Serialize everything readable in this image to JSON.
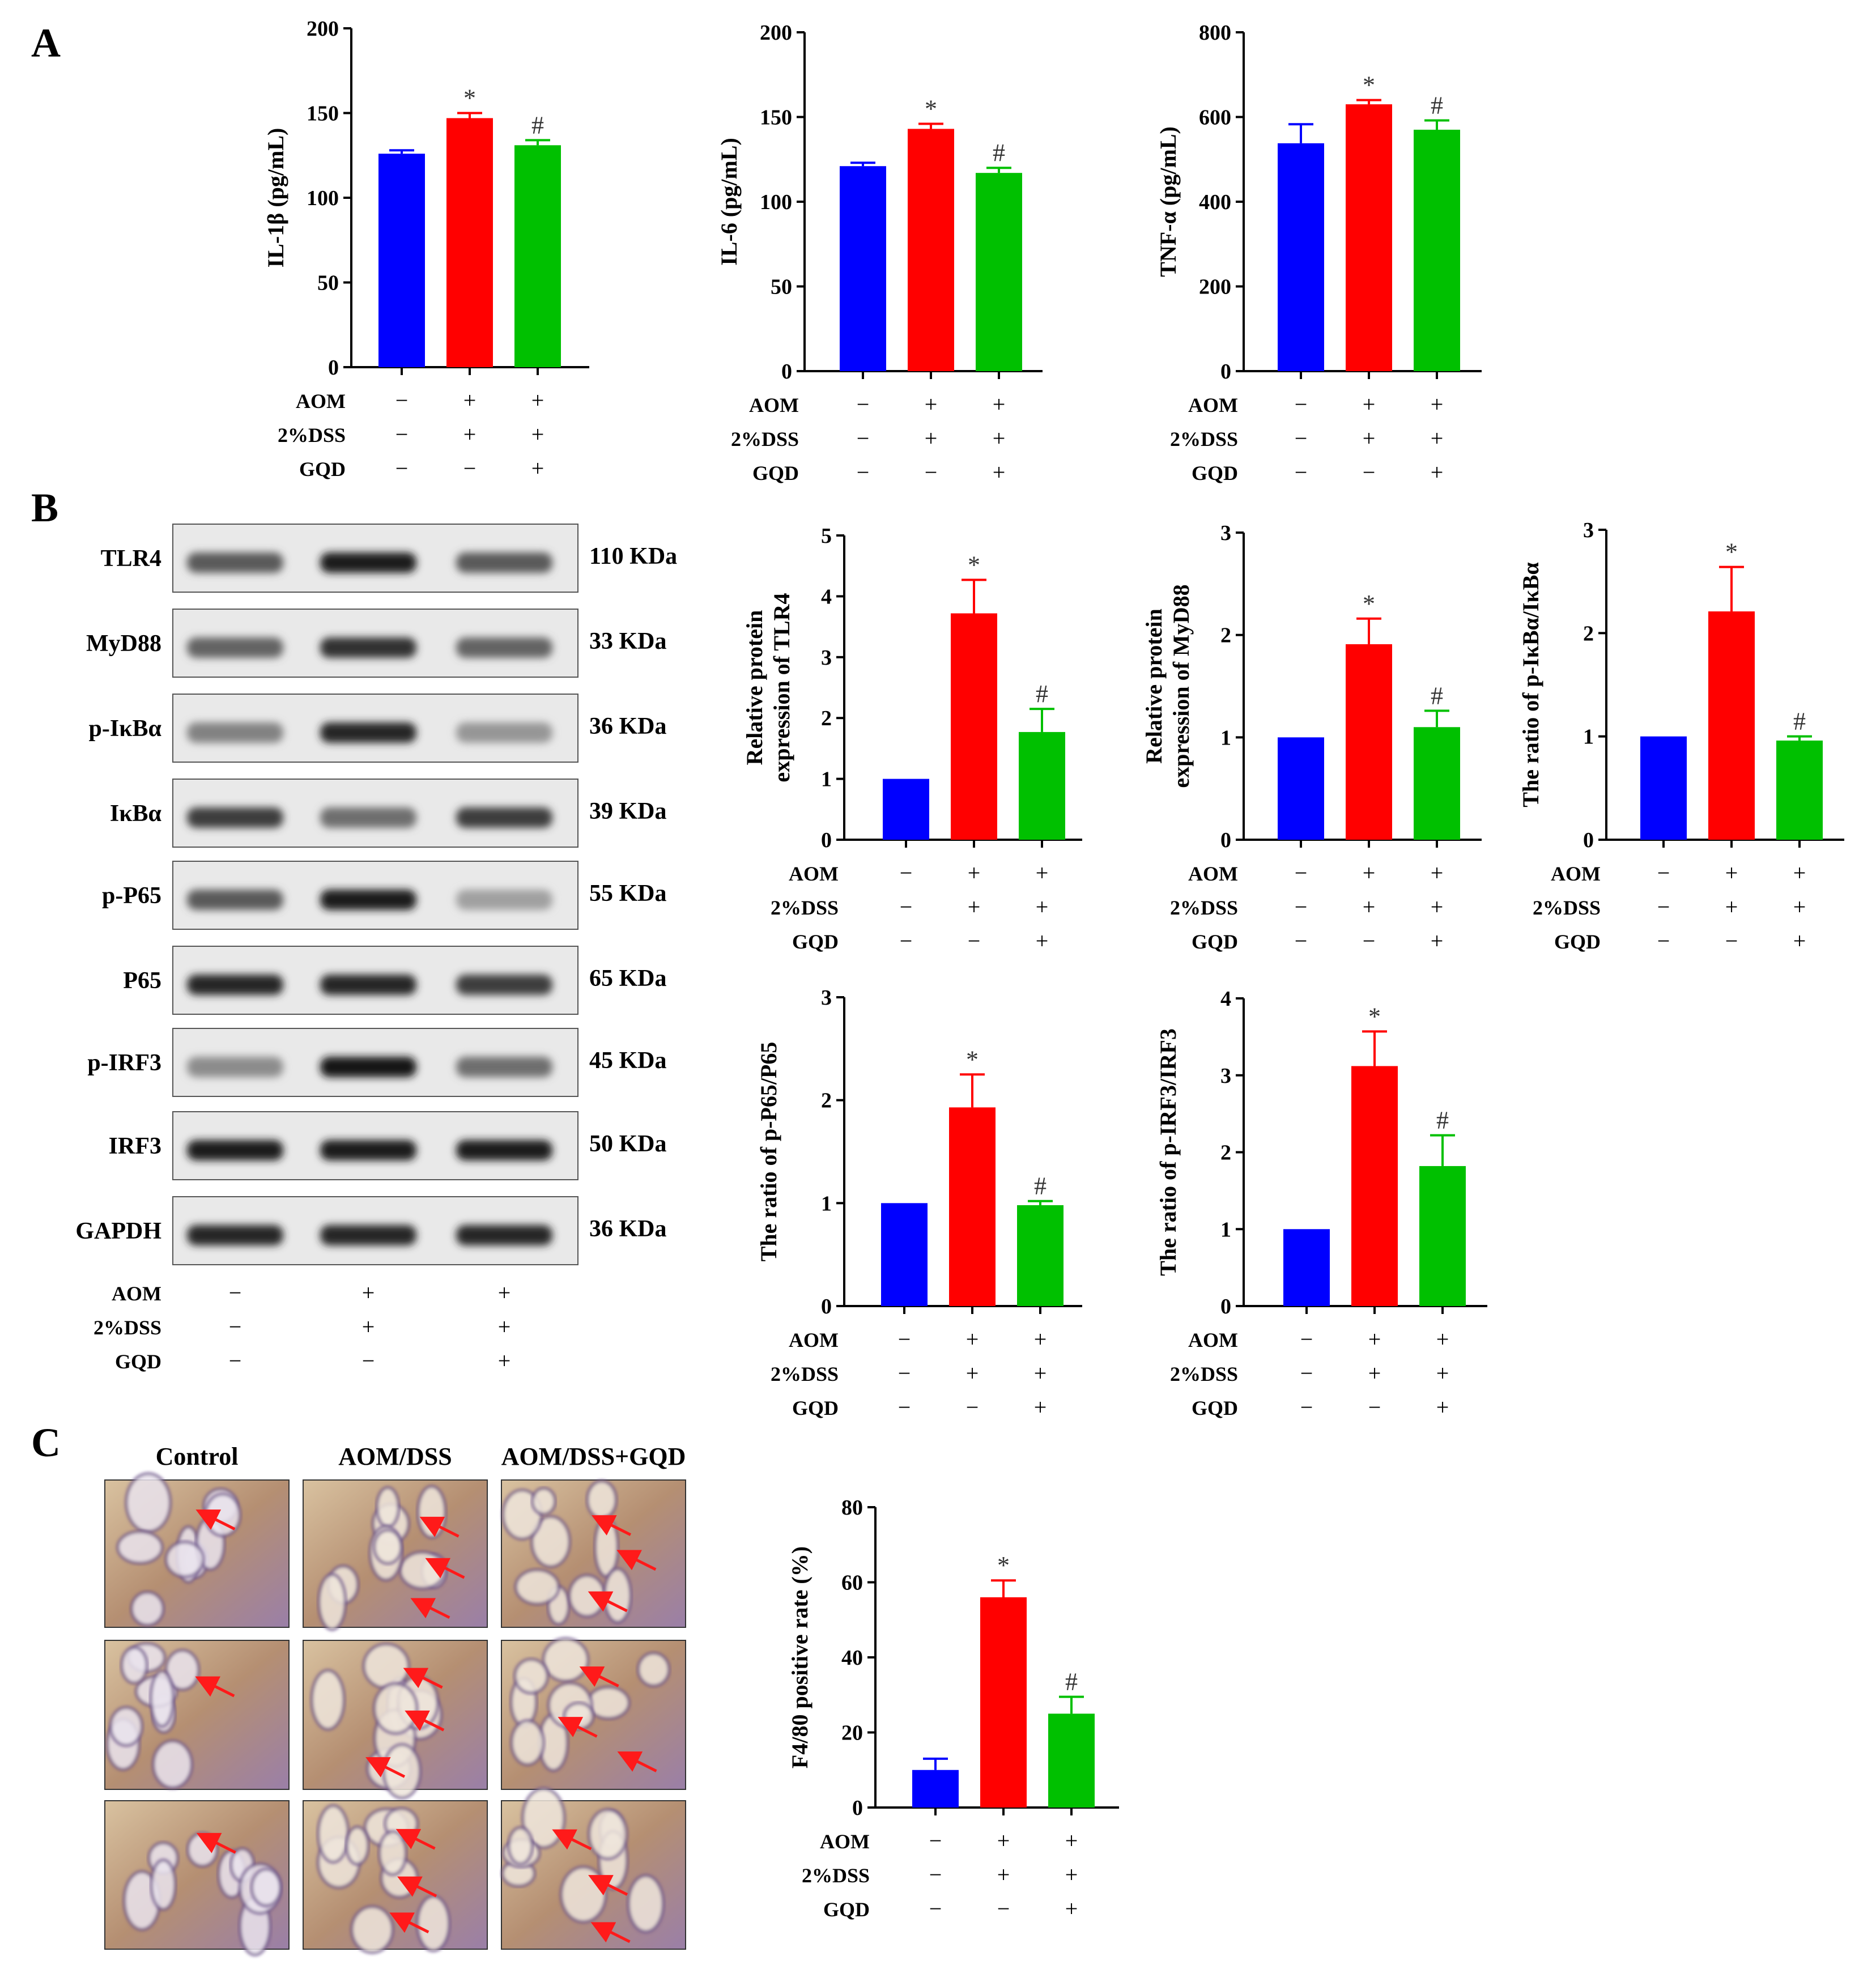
{
  "panel_labels": [
    "A",
    "B",
    "C"
  ],
  "condition_labels": [
    "AOM",
    "2%DSS",
    "GQD"
  ],
  "condition_marks": [
    [
      "−",
      "+",
      "+"
    ],
    [
      "−",
      "+",
      "+"
    ],
    [
      "−",
      "−",
      "+"
    ]
  ],
  "colors": {
    "group1": "#0000ff",
    "group2": "#ff0000",
    "group3": "#00c000"
  },
  "blot": {
    "proteins": [
      {
        "name": "TLR4",
        "kda": "110 KDa",
        "intensity": [
          0.55,
          0.85,
          0.55
        ]
      },
      {
        "name": "MyD88",
        "kda": "33 KDa",
        "intensity": [
          0.5,
          0.75,
          0.5
        ]
      },
      {
        "name": "p-IκBα",
        "kda": "36 KDa",
        "intensity": [
          0.35,
          0.8,
          0.25
        ]
      },
      {
        "name": "IκBα",
        "kda": "39 KDa",
        "intensity": [
          0.7,
          0.45,
          0.7
        ]
      },
      {
        "name": "p-P65",
        "kda": "55 KDa",
        "intensity": [
          0.55,
          0.85,
          0.2
        ]
      },
      {
        "name": "P65",
        "kda": "65 KDa",
        "intensity": [
          0.8,
          0.8,
          0.7
        ]
      },
      {
        "name": "p-IRF3",
        "kda": "45 KDa",
        "intensity": [
          0.3,
          0.9,
          0.45
        ]
      },
      {
        "name": "IRF3",
        "kda": "50 KDa",
        "intensity": [
          0.85,
          0.85,
          0.85
        ]
      },
      {
        "name": "GAPDH",
        "kda": "36 KDa",
        "intensity": [
          0.8,
          0.8,
          0.8
        ]
      }
    ]
  },
  "ihc": {
    "columns": [
      "Control",
      "AOM/DSS",
      "AOM/DSS+GQD"
    ]
  },
  "chart_data": [
    {
      "type": "bar",
      "ylabel": "IL-1β (pg/mL)",
      "ylim": [
        0,
        200
      ],
      "yticks": [
        "0",
        "50",
        "100",
        "150",
        "200"
      ],
      "values": [
        126,
        147,
        131
      ],
      "errors": [
        2,
        3,
        3
      ],
      "annotations": [
        "",
        "*",
        "#"
      ]
    },
    {
      "type": "bar",
      "ylabel": "IL-6 (pg/mL)",
      "ylim": [
        0,
        200
      ],
      "yticks": [
        "0",
        "50",
        "100",
        "150",
        "200"
      ],
      "values": [
        121,
        143,
        117
      ],
      "errors": [
        2,
        3,
        3
      ],
      "annotations": [
        "",
        "*",
        "#"
      ]
    },
    {
      "type": "bar",
      "ylabel": "TNF-α (pg/mL)",
      "ylim": [
        0,
        800
      ],
      "yticks": [
        "0",
        "200",
        "400",
        "600",
        "800"
      ],
      "values": [
        538,
        630,
        570
      ],
      "errors": [
        45,
        10,
        22
      ],
      "annotations": [
        "",
        "*",
        "#"
      ]
    },
    {
      "type": "bar",
      "ylabel": [
        "Relative protein",
        "expression of TLR4"
      ],
      "ylim": [
        0,
        5
      ],
      "yticks": [
        "0",
        "1",
        "2",
        "3",
        "4",
        "5"
      ],
      "values": [
        1,
        3.72,
        1.77
      ],
      "errors": [
        0,
        0.55,
        0.38
      ],
      "annotations": [
        "",
        "*",
        "#"
      ]
    },
    {
      "type": "bar",
      "ylabel": [
        "Relative protein",
        "expression of MyD88"
      ],
      "ylim": [
        0,
        3
      ],
      "yticks": [
        "0",
        "1",
        "2",
        "3"
      ],
      "values": [
        1,
        1.91,
        1.1
      ],
      "errors": [
        0,
        0.25,
        0.16
      ],
      "annotations": [
        "",
        "*",
        "#"
      ]
    },
    {
      "type": "bar",
      "ylabel": "The ratio of p-IκBα/IκBα",
      "ylim": [
        0,
        3
      ],
      "yticks": [
        "0",
        "1",
        "2",
        "3"
      ],
      "values": [
        1,
        2.21,
        0.96
      ],
      "errors": [
        0,
        0.43,
        0.04
      ],
      "annotations": [
        "",
        "*",
        "#"
      ]
    },
    {
      "type": "bar",
      "ylabel": "The ratio of p-P65/P65",
      "ylim": [
        0,
        3
      ],
      "yticks": [
        "0",
        "1",
        "2",
        "3"
      ],
      "values": [
        1,
        1.93,
        0.98
      ],
      "errors": [
        0,
        0.32,
        0.04
      ],
      "annotations": [
        "",
        "*",
        "#"
      ]
    },
    {
      "type": "bar",
      "ylabel": "The ratio of p-IRF3/IRF3",
      "ylim": [
        0,
        4
      ],
      "yticks": [
        "0",
        "1",
        "2",
        "3",
        "4"
      ],
      "values": [
        1,
        3.12,
        1.82
      ],
      "errors": [
        0,
        0.45,
        0.4
      ],
      "annotations": [
        "",
        "*",
        "#"
      ]
    },
    {
      "type": "bar",
      "ylabel": "F4/80 positive rate (%)",
      "ylim": [
        0,
        80
      ],
      "yticks": [
        "0",
        "20",
        "40",
        "60",
        "80"
      ],
      "values": [
        10,
        56,
        25
      ],
      "errors": [
        3,
        4.5,
        4.5
      ],
      "annotations": [
        "",
        "*",
        "#"
      ]
    }
  ]
}
